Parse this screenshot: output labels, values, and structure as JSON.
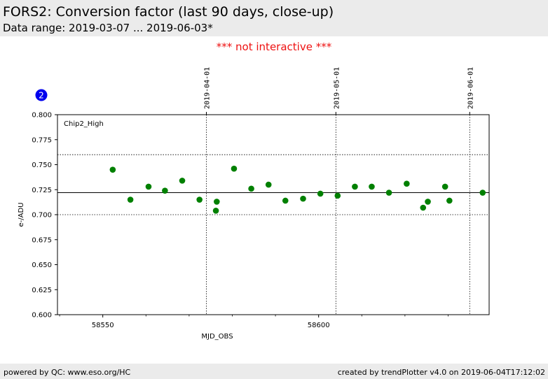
{
  "header": {
    "title": "FORS2: Conversion factor (last 90 days, close-up)",
    "subtitle": "Data range: 2019-03-07 ... 2019-06-03*"
  },
  "notice": "*** not interactive ***",
  "badge": {
    "label": "2"
  },
  "footer": {
    "left": "powered by QC: www.eso.org/HC",
    "right": "created by trendPlotter v4.0 on 2019-06-04T17:12:02"
  },
  "colors": {
    "points": "#008000",
    "badge": "#0000ee",
    "notice": "#ee1111"
  },
  "chart_data": {
    "type": "scatter",
    "panel_label": "Chip2_High",
    "xlabel": "MJD_OBS",
    "ylabel": "e-/ADU",
    "xlim": [
      58539.5,
      58639.5
    ],
    "ylim": [
      0.6,
      0.8
    ],
    "x_ticks": [
      58550,
      58600
    ],
    "y_ticks": [
      0.6,
      0.625,
      0.65,
      0.675,
      0.7,
      0.725,
      0.75,
      0.775,
      0.8
    ],
    "y_tick_labels": [
      "0.600",
      "0.625",
      "0.650",
      "0.675",
      "0.700",
      "0.725",
      "0.750",
      "0.775",
      "0.800"
    ],
    "date_markers": [
      {
        "label": "2019-04-01",
        "mjd": 58574
      },
      {
        "label": "2019-05-01",
        "mjd": 58604
      },
      {
        "label": "2019-06-01",
        "mjd": 58635
      }
    ],
    "reference_lines": {
      "mean": 0.722,
      "upper": 0.76,
      "lower": 0.7
    },
    "points": [
      {
        "x": 58552.3,
        "y": 0.745
      },
      {
        "x": 58556.4,
        "y": 0.715
      },
      {
        "x": 58560.6,
        "y": 0.728
      },
      {
        "x": 58564.4,
        "y": 0.724
      },
      {
        "x": 58568.4,
        "y": 0.734
      },
      {
        "x": 58572.4,
        "y": 0.715
      },
      {
        "x": 58576.2,
        "y": 0.704
      },
      {
        "x": 58576.4,
        "y": 0.713
      },
      {
        "x": 58580.4,
        "y": 0.746
      },
      {
        "x": 58584.4,
        "y": 0.726
      },
      {
        "x": 58588.4,
        "y": 0.73
      },
      {
        "x": 58592.3,
        "y": 0.714
      },
      {
        "x": 58596.4,
        "y": 0.716
      },
      {
        "x": 58600.4,
        "y": 0.721
      },
      {
        "x": 58604.4,
        "y": 0.719
      },
      {
        "x": 58608.4,
        "y": 0.728
      },
      {
        "x": 58612.3,
        "y": 0.728
      },
      {
        "x": 58616.3,
        "y": 0.722
      },
      {
        "x": 58620.4,
        "y": 0.731
      },
      {
        "x": 58624.2,
        "y": 0.707
      },
      {
        "x": 58625.3,
        "y": 0.713
      },
      {
        "x": 58629.3,
        "y": 0.728
      },
      {
        "x": 58630.3,
        "y": 0.714
      },
      {
        "x": 58638.0,
        "y": 0.722
      }
    ]
  }
}
